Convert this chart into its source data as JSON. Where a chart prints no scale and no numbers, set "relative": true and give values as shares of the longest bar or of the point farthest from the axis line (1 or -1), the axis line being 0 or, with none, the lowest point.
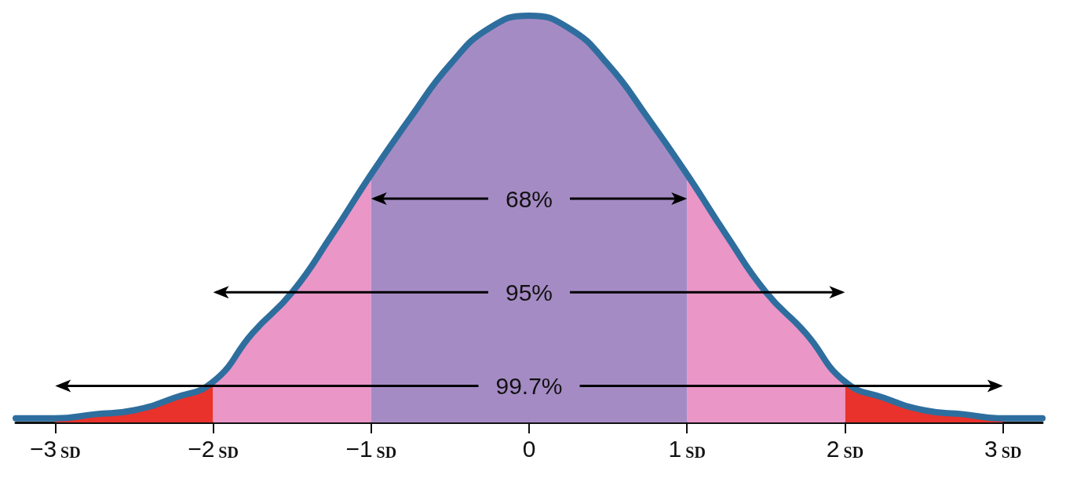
{
  "chart_data": {
    "type": "area",
    "relative": true,
    "xlim": [
      -3.25,
      3.25
    ],
    "xticks": [
      {
        "value": -3,
        "label": "−3 SD"
      },
      {
        "value": -2,
        "label": "−2 SD"
      },
      {
        "value": -1,
        "label": "−1 SD"
      },
      0,
      {
        "value": 1,
        "label": "1 SD"
      },
      {
        "value": 2,
        "label": "2 SD"
      },
      {
        "value": 3,
        "label": "3 SD"
      }
    ],
    "series": [
      {
        "color": "#a58bc4",
        "x": [
          -1,
          -0.75,
          -0.5,
          -0.25,
          0,
          0.25,
          0.5,
          0.75,
          1
        ],
        "values": [
          0.61,
          0.75,
          0.88,
          0.97,
          1,
          0.97,
          0.88,
          0.75,
          0.61
        ]
      },
      {
        "color": "#ea96c7",
        "x": [
          -2,
          -1.75,
          -1.5,
          -1.25,
          -1,
          0,
          1,
          1.25,
          1.5,
          1.75,
          2
        ],
        "values": [
          0.1,
          0.22,
          0.32,
          0.46,
          0.61,
          null,
          0.61,
          0.46,
          0.32,
          0.22,
          0.1
        ]
      },
      {
        "color": "#e8322b",
        "x": [
          -3,
          -2.75,
          -2.5,
          -2.25,
          -2,
          0,
          2,
          2.25,
          2.5,
          2.75,
          3
        ],
        "values": [
          0.01,
          0.02,
          0.03,
          0.06,
          0.1,
          null,
          0.1,
          0.06,
          0.03,
          0.02,
          0.01
        ]
      },
      {
        "type": "line",
        "color": "#2e6e9e",
        "x": [
          -3.25,
          -3,
          -2.75,
          -2.5,
          -2.25,
          -2,
          -1.75,
          -1.5,
          -1.25,
          -1,
          -0.75,
          -0.5,
          -0.25,
          0,
          0.25,
          0.5,
          0.75,
          1,
          1.25,
          1.5,
          1.75,
          2,
          2.25,
          2.5,
          2.75,
          3,
          3.25
        ],
        "values": [
          0.01,
          0.01,
          0.02,
          0.03,
          0.06,
          0.1,
          0.22,
          0.32,
          0.46,
          0.61,
          0.75,
          0.88,
          0.97,
          1,
          0.97,
          0.88,
          0.75,
          0.61,
          0.46,
          0.32,
          0.22,
          0.1,
          0.06,
          0.03,
          0.02,
          0.01,
          0.01
        ]
      }
    ],
    "annotations": [
      "68%",
      "95%",
      "99.7%"
    ]
  }
}
